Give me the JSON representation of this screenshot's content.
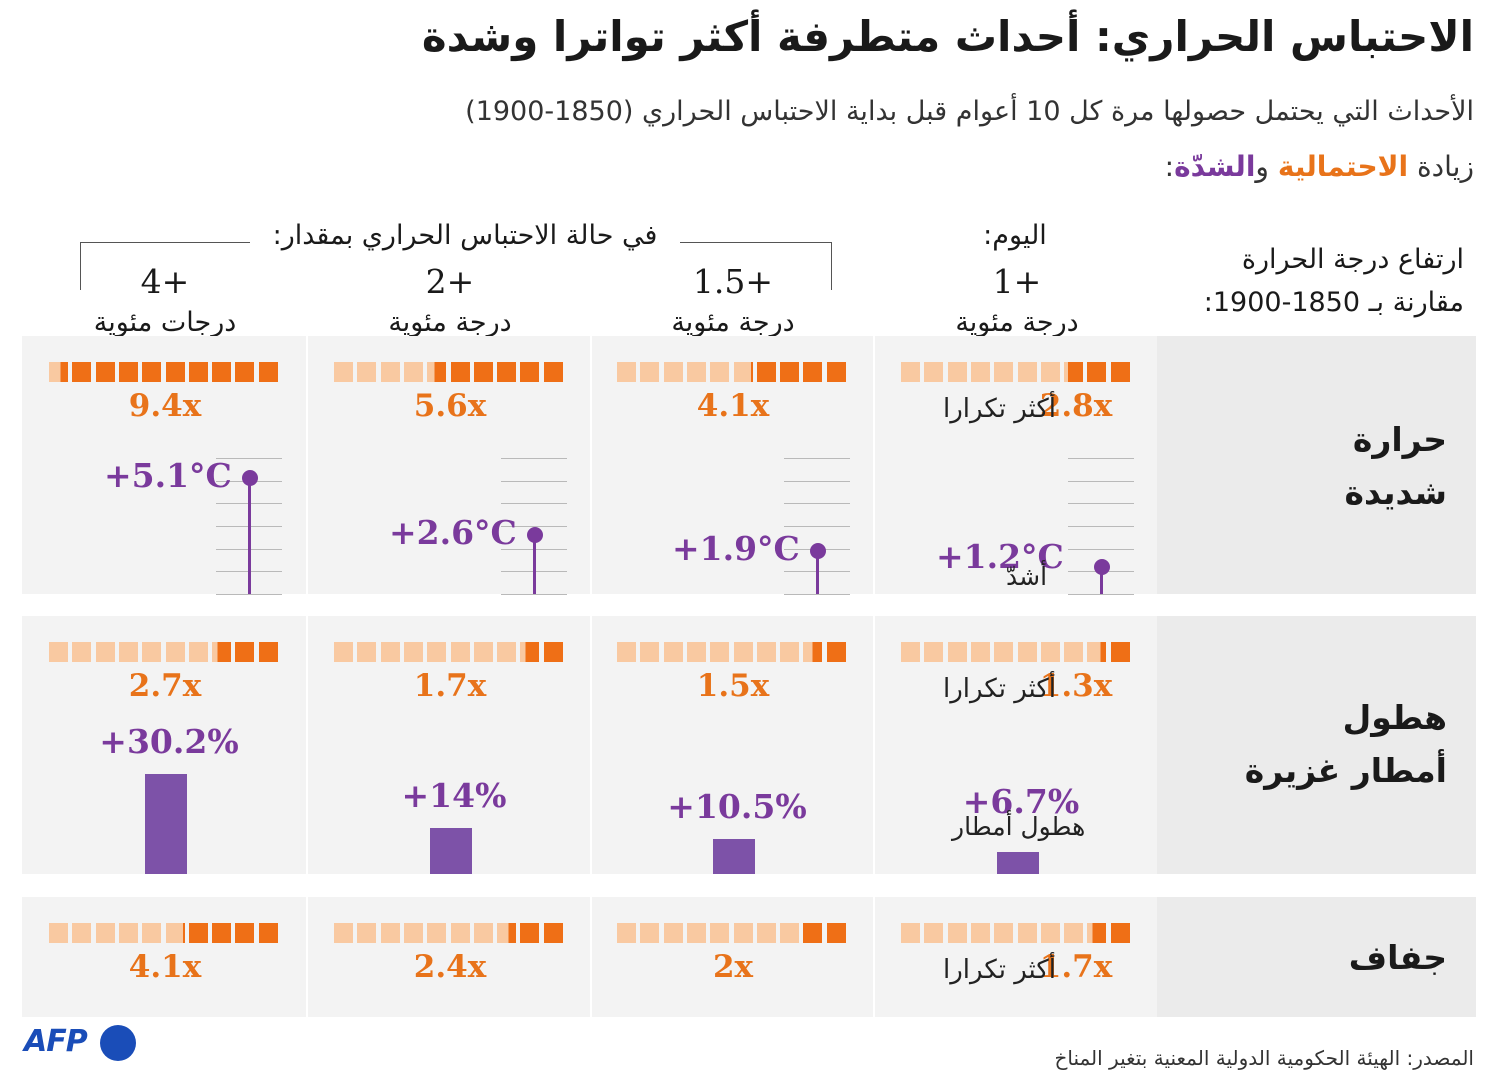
{
  "title": "الاحتباس الحراري: أحداث متطرفة أكثر تواترا وشدة",
  "subtitle": "الأحداث التي يحتمل حصولها مرة كل 10 أعوام قبل بداية الاحتباس الحراري (1850-1900)",
  "legend": {
    "prefix": "زيادة ",
    "likelihood": "الاحتمالية",
    "joiner": " و",
    "intensity": "الشدّة",
    "suffix": ":"
  },
  "header": {
    "row_label_line1": "ارتفاع درجة الحرارة",
    "row_label_line2": "مقارنة بـ 1850-1900:",
    "today": "اليوم:",
    "scenario": "في حالة الاحتباس الحراري بمقدار:"
  },
  "notes": {
    "more_frequent": "أكثر تكرارا",
    "more_intense": "أشدّ",
    "heavier_rain": "هطول أمطار"
  },
  "source": "المصدر: الهيئة الحكومية الدولية المعنية بتغير المناخ",
  "logo": {
    "text": "AFP"
  },
  "colors": {
    "orange": "#e8731a",
    "orange_light": "#f9c9a1",
    "purple": "#7a3a9c",
    "purple_bar": "#7d52a8",
    "band": "#f3f3f3"
  },
  "chart_data": {
    "type": "table",
    "columns": [
      {
        "level": "1+",
        "unit": "درجة مئوية"
      },
      {
        "level": "1.5+",
        "unit": "درجة مئوية"
      },
      {
        "level": "2+",
        "unit": "درجة مئوية"
      },
      {
        "level": "4+",
        "unit": "درجات مئوية"
      }
    ],
    "rows": [
      {
        "label_line1": "حرارة",
        "label_line2": "شديدة",
        "likelihood_labels": [
          "2.8x",
          "4.1x",
          "5.6x",
          "9.4x"
        ],
        "likelihood_values": [
          2.8,
          4.1,
          5.6,
          9.4
        ],
        "intensity_labels": [
          "+1.2°C",
          "+1.9°C",
          "+2.6°C",
          "+5.1°C"
        ],
        "intensity_values": [
          1.2,
          1.9,
          2.6,
          5.1
        ]
      },
      {
        "label_line1": "هطول",
        "label_line2": "أمطار غزيرة",
        "likelihood_labels": [
          "1.3x",
          "1.5x",
          "1.7x",
          "2.7x"
        ],
        "likelihood_values": [
          1.3,
          1.5,
          1.7,
          2.7
        ],
        "intensity_labels": [
          "+6.7%",
          "+10.5%",
          "+14%",
          "+30.2%"
        ],
        "intensity_values": [
          6.7,
          10.5,
          14,
          30.2
        ]
      },
      {
        "label_line1": "جفاف",
        "label_line2": "",
        "likelihood_labels": [
          "1.7x",
          "2x",
          "2.4x",
          "4.1x"
        ],
        "likelihood_values": [
          1.7,
          2,
          2.4,
          4.1
        ]
      }
    ]
  }
}
